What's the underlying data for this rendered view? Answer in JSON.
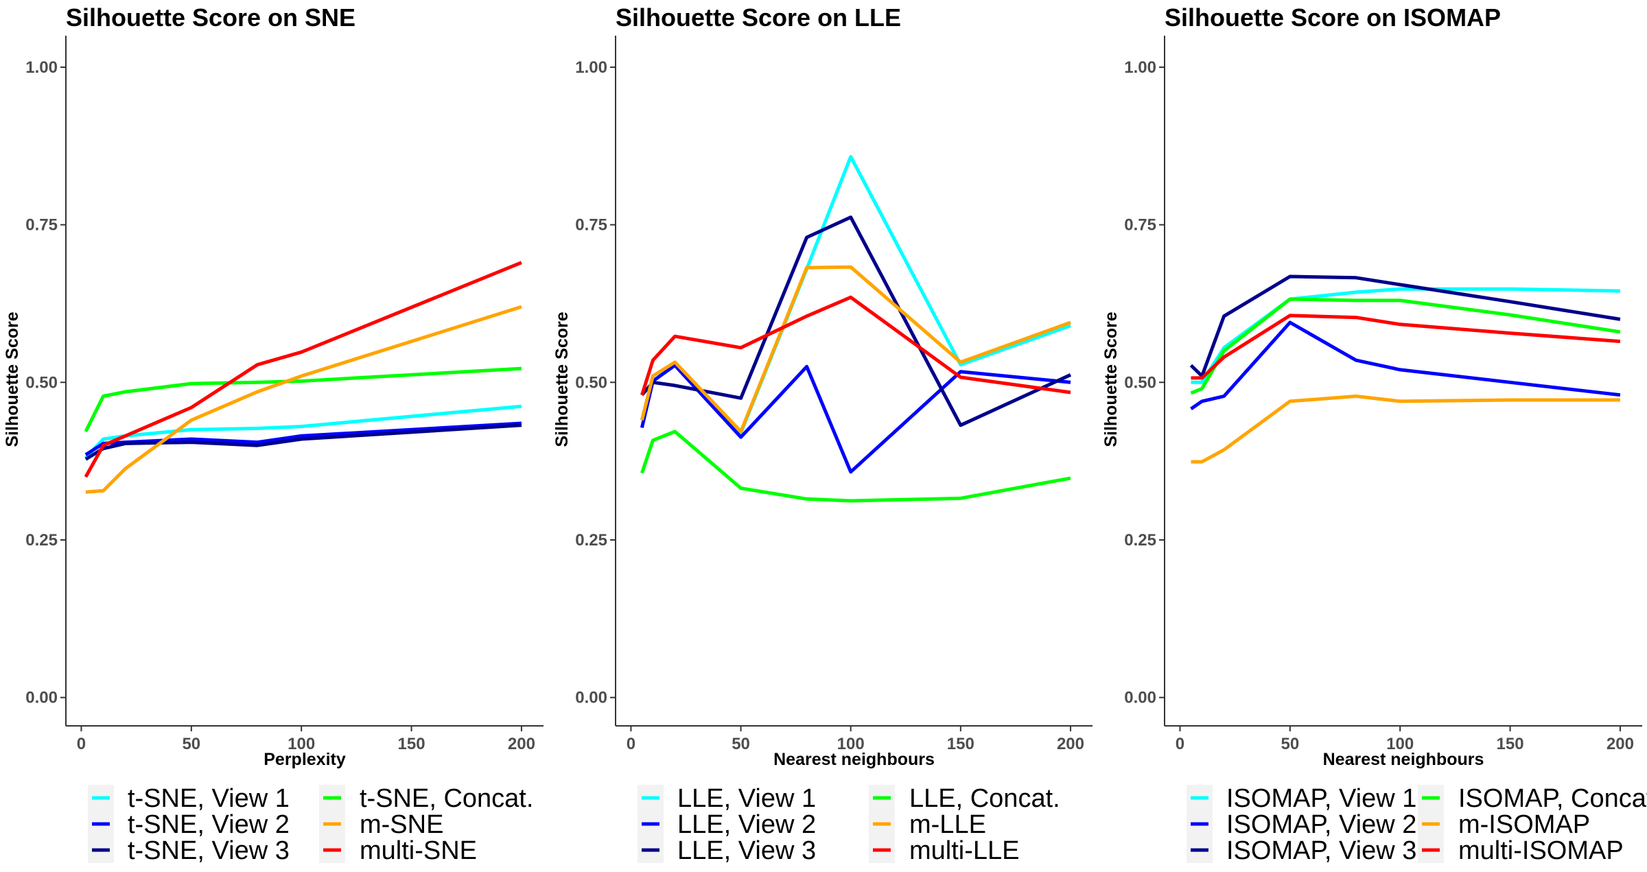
{
  "chart_data": [
    {
      "type": "line",
      "title": "Silhouette Score on SNE",
      "xlabel": "Perplexity",
      "ylabel": "Silhouette Score",
      "xlim": [
        -7,
        210
      ],
      "ylim": [
        -0.045,
        1.05
      ],
      "xticks": [
        0,
        50,
        100,
        150,
        200
      ],
      "xtick_labels": [
        "0",
        "50",
        "100",
        "150",
        "200"
      ],
      "yticks": [
        0,
        0.25,
        0.5,
        0.75,
        1.0
      ],
      "ytick_labels": [
        "0.00",
        "0.25",
        "0.50",
        "0.75",
        "1.00"
      ],
      "legend_position": "bottom",
      "series": [
        {
          "name": "t-SNE, View 1",
          "color": "#00ffff",
          "x": [
            2,
            10,
            20,
            50,
            80,
            100,
            200
          ],
          "y": [
            0.38,
            0.41,
            0.415,
            0.425,
            0.427,
            0.43,
            0.462
          ]
        },
        {
          "name": "t-SNE, View 2",
          "color": "#0000ff",
          "x": [
            2,
            10,
            20,
            50,
            80,
            100,
            200
          ],
          "y": [
            0.385,
            0.403,
            0.405,
            0.41,
            0.405,
            0.415,
            0.435
          ]
        },
        {
          "name": "t-SNE, View 3",
          "color": "#00008b",
          "x": [
            2,
            10,
            20,
            50,
            80,
            100,
            200
          ],
          "y": [
            0.378,
            0.395,
            0.403,
            0.405,
            0.4,
            0.41,
            0.432
          ]
        },
        {
          "name": "t-SNE, Concat.",
          "color": "#00ff00",
          "x": [
            2,
            10,
            20,
            50,
            80,
            100,
            200
          ],
          "y": [
            0.422,
            0.478,
            0.485,
            0.498,
            0.5,
            0.502,
            0.522
          ]
        },
        {
          "name": "m-SNE",
          "color": "#ffa500",
          "x": [
            2,
            10,
            20,
            50,
            80,
            100,
            200
          ],
          "y": [
            0.326,
            0.328,
            0.363,
            0.44,
            0.485,
            0.51,
            0.62
          ]
        },
        {
          "name": "multi-SNE",
          "color": "#ff0000",
          "x": [
            2,
            10,
            20,
            50,
            80,
            100,
            200
          ],
          "y": [
            0.35,
            0.4,
            0.415,
            0.46,
            0.528,
            0.548,
            0.69
          ]
        }
      ]
    },
    {
      "type": "line",
      "title": "Silhouette Score on LLE",
      "xlabel": "Nearest neighbours",
      "ylabel": "Silhouette Score",
      "xlim": [
        -7,
        210
      ],
      "ylim": [
        -0.045,
        1.05
      ],
      "xticks": [
        0,
        50,
        100,
        150,
        200
      ],
      "xtick_labels": [
        "0",
        "50",
        "100",
        "150",
        "200"
      ],
      "yticks": [
        0,
        0.25,
        0.5,
        0.75,
        1.0
      ],
      "ytick_labels": [
        "0.00",
        "0.25",
        "0.50",
        "0.75",
        "1.00"
      ],
      "legend_position": "bottom",
      "series": [
        {
          "name": "LLE, View 1",
          "color": "#00ffff",
          "x": [
            5,
            10,
            20,
            50,
            80,
            100,
            150,
            200
          ],
          "y": [
            0.44,
            0.51,
            0.53,
            0.42,
            0.68,
            0.858,
            0.528,
            0.59
          ]
        },
        {
          "name": "LLE, View 2",
          "color": "#0000ff",
          "x": [
            5,
            10,
            20,
            50,
            80,
            100,
            150,
            200
          ],
          "y": [
            0.428,
            0.502,
            0.527,
            0.413,
            0.525,
            0.358,
            0.517,
            0.5
          ]
        },
        {
          "name": "LLE, View 3",
          "color": "#00008b",
          "x": [
            5,
            10,
            20,
            50,
            80,
            100,
            150,
            200
          ],
          "y": [
            0.48,
            0.5,
            0.495,
            0.475,
            0.73,
            0.762,
            0.432,
            0.512
          ]
        },
        {
          "name": "LLE, Concat.",
          "color": "#00ff00",
          "x": [
            5,
            10,
            20,
            50,
            80,
            100,
            150,
            200
          ],
          "y": [
            0.356,
            0.408,
            0.422,
            0.332,
            0.315,
            0.312,
            0.316,
            0.348
          ]
        },
        {
          "name": "m-LLE",
          "color": "#ffa500",
          "x": [
            5,
            10,
            20,
            50,
            80,
            100,
            150,
            200
          ],
          "y": [
            0.44,
            0.51,
            0.532,
            0.422,
            0.682,
            0.683,
            0.532,
            0.595
          ]
        },
        {
          "name": "multi-LLE",
          "color": "#ff0000",
          "x": [
            5,
            10,
            20,
            50,
            80,
            100,
            150,
            200
          ],
          "y": [
            0.48,
            0.535,
            0.573,
            0.555,
            0.605,
            0.635,
            0.508,
            0.484
          ]
        }
      ]
    },
    {
      "type": "line",
      "title": "Silhouette Score on ISOMAP",
      "xlabel": "Nearest neighbours",
      "ylabel": "Silhouette Score",
      "xlim": [
        -7,
        210
      ],
      "ylim": [
        -0.045,
        1.05
      ],
      "xticks": [
        0,
        50,
        100,
        150,
        200
      ],
      "xtick_labels": [
        "0",
        "50",
        "100",
        "150",
        "200"
      ],
      "yticks": [
        0,
        0.25,
        0.5,
        0.75,
        1.0
      ],
      "ytick_labels": [
        "0.00",
        "0.25",
        "0.50",
        "0.75",
        "1.00"
      ],
      "legend_position": "bottom",
      "series": [
        {
          "name": "ISOMAP, View 1",
          "color": "#00ffff",
          "x": [
            5,
            10,
            20,
            50,
            80,
            100,
            150,
            200
          ],
          "y": [
            0.5,
            0.5,
            0.555,
            0.632,
            0.643,
            0.648,
            0.648,
            0.645
          ]
        },
        {
          "name": "ISOMAP, View 2",
          "color": "#0000ff",
          "x": [
            5,
            10,
            20,
            50,
            80,
            100,
            150,
            200
          ],
          "y": [
            0.458,
            0.47,
            0.478,
            0.595,
            0.535,
            0.52,
            0.5,
            0.48
          ]
        },
        {
          "name": "ISOMAP, View 3",
          "color": "#00008b",
          "x": [
            5,
            10,
            20,
            50,
            80,
            100,
            150,
            200
          ],
          "y": [
            0.527,
            0.51,
            0.605,
            0.668,
            0.666,
            0.655,
            0.628,
            0.6
          ]
        },
        {
          "name": "ISOMAP, Concat.",
          "color": "#00ff00",
          "x": [
            5,
            10,
            20,
            50,
            80,
            100,
            150,
            200
          ],
          "y": [
            0.483,
            0.49,
            0.55,
            0.632,
            0.63,
            0.63,
            0.607,
            0.58
          ]
        },
        {
          "name": "m-ISOMAP",
          "color": "#ffa500",
          "x": [
            5,
            10,
            20,
            50,
            80,
            100,
            150,
            200
          ],
          "y": [
            0.374,
            0.374,
            0.393,
            0.47,
            0.478,
            0.47,
            0.472,
            0.472
          ]
        },
        {
          "name": "multi-ISOMAP",
          "color": "#ff0000",
          "x": [
            5,
            10,
            20,
            50,
            80,
            100,
            150,
            200
          ],
          "y": [
            0.507,
            0.507,
            0.54,
            0.606,
            0.603,
            0.592,
            0.578,
            0.565
          ]
        }
      ]
    }
  ]
}
